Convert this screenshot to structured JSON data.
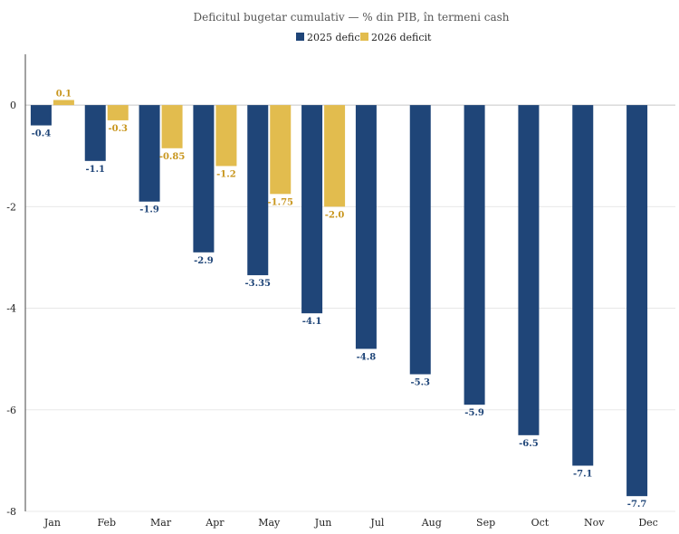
{
  "chart_data": {
    "type": "bar",
    "title": "Deficitul bugetar cumulativ — % din PIB, în termeni cash",
    "xlabel": "",
    "ylabel": "",
    "ylim": [
      -8,
      1
    ],
    "yticks": [
      0,
      -2,
      -4,
      -6,
      -8
    ],
    "grid": true,
    "legend_position": "top-center",
    "categories": [
      "Jan",
      "Feb",
      "Mar",
      "Apr",
      "May",
      "Jun",
      "Jul",
      "Aug",
      "Sep",
      "Oct",
      "Nov",
      "Dec"
    ],
    "series": [
      {
        "name": "2025 deficit",
        "color": "#1f4578",
        "values": [
          -0.4,
          -1.1,
          -1.9,
          -2.9,
          -3.35,
          -4.1,
          -4.8,
          -5.3,
          -5.9,
          -6.5,
          -7.1,
          -7.7
        ],
        "labels": [
          "-0.4",
          "-1.1",
          "-1.9",
          "-2.9",
          "-3.35",
          "-4.1",
          "-4.8",
          "-5.3",
          "-5.9",
          "-6.5",
          "-7.1",
          "-7.7"
        ]
      },
      {
        "name": "2026 deficit",
        "color": "#e2bc4e",
        "label_color": "#c8961e",
        "values": [
          0.1,
          -0.3,
          -0.85,
          -1.2,
          -1.75,
          -2.0,
          null,
          null,
          null,
          null,
          null,
          null
        ],
        "labels": [
          "0.1",
          "-0.3",
          "-0.85",
          "-1.2",
          "-1.75",
          "-2.0",
          null,
          null,
          null,
          null,
          null,
          null
        ]
      }
    ]
  }
}
